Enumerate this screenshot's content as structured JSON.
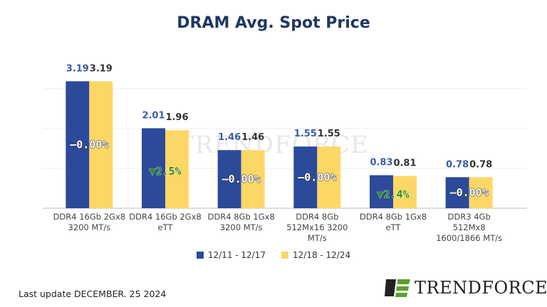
{
  "chart_data": {
    "type": "bar",
    "title": "DRAM Avg. Spot Price",
    "categories": [
      "DDR4 16Gb 2Gx8\n3200 MT/s",
      "DDR4 16Gb 2Gx8\neTT",
      "DDR4 8Gb 1Gx8\n3200 MT/s",
      "DDR4 8Gb\n512Mx16 3200\nMT/s",
      "DDR4 8Gb 1Gx8\neTT",
      "DDR3 4Gb\n512Mx8\n1600/1866  MT/s"
    ],
    "series": [
      {
        "name": "12/11 - 12/17",
        "color": "#2b4a9a",
        "label_color": "#3a5ba8",
        "values": [
          3.19,
          2.01,
          1.46,
          1.55,
          0.83,
          0.78
        ]
      },
      {
        "name": "12/18 - 12/24",
        "color": "#fdd766",
        "label_color": "#333333",
        "values": [
          3.19,
          1.96,
          1.46,
          1.55,
          0.81,
          0.78
        ]
      }
    ],
    "changes": [
      "–0.00%",
      "▼2.5%",
      "–0.00%",
      "–0.00%",
      "▼2.4%",
      "–0.00%"
    ],
    "change_colors": {
      "flat": "#ffffff",
      "down": "#2e8b22"
    },
    "ylim": [
      0,
      4
    ],
    "grid": true,
    "legend": "bottom"
  },
  "footer": {
    "last_update": "Last update DECEMBER. 25  2024",
    "brand": "TRENDFORCE",
    "watermark": "TRENDFORCE"
  }
}
